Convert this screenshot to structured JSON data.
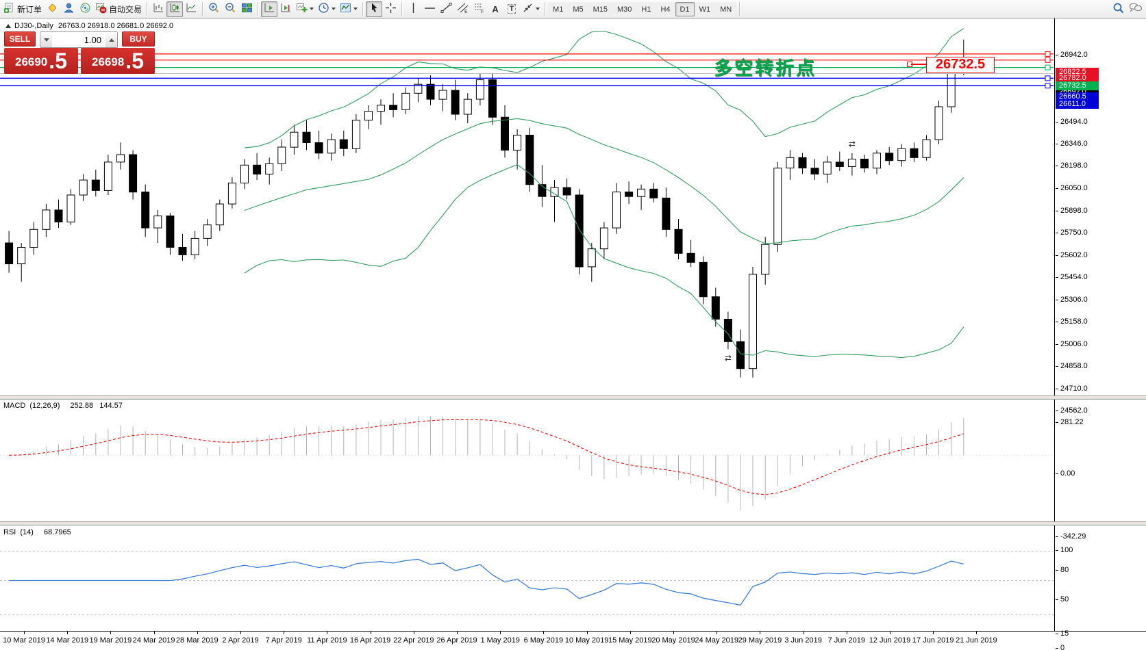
{
  "toolbar": {
    "new_order_label": "新订单",
    "autotrading_label": "自动交易",
    "timeframes": [
      "M1",
      "M5",
      "M15",
      "M30",
      "H1",
      "H4",
      "D1",
      "W1",
      "MN"
    ],
    "active_timeframe": "D1",
    "glyphs": {
      "channel": "E",
      "fibo": "F",
      "text": "A",
      "label": "T"
    }
  },
  "chart_header": {
    "symbol": "DJ30-,Daily",
    "ohlc_text": "26763.0 26918.0 26681.0 26692.0"
  },
  "trade_panel": {
    "sell_label": "SELL",
    "buy_label": "BUY",
    "volume": "1.00",
    "sell_price_figure": "26690",
    "sell_price_fraction": ".5",
    "buy_price_figure": "26698",
    "buy_price_fraction": ".5"
  },
  "annotations": {
    "turning_point_text": "多空转折点",
    "callout_price": "26732.5"
  },
  "chart_data": {
    "type": "candlestick",
    "symbol": "DJ30-",
    "timeframe": "Daily",
    "last_ohlc": {
      "open": 26763.0,
      "high": 26918.0,
      "low": 26681.0,
      "close": 26692.0
    },
    "y_axis": {
      "min": 24540,
      "max": 27060,
      "ticks": [
        26942.0,
        26494.0,
        26346.0,
        26198.0,
        26050.0,
        25898.0,
        25750.0,
        25602.0,
        25454.0,
        25306.0,
        25158.0,
        25006.0,
        24858.0,
        24710.0,
        24562.0
      ]
    },
    "x_labels": [
      "10 Mar 2019",
      "14 Mar 2019",
      "19 Mar 2019",
      "24 Mar 2019",
      "28 Mar 2019",
      "2 Apr 2019",
      "7 Apr 2019",
      "11 Apr 2019",
      "16 Apr 2019",
      "22 Apr 2019",
      "26 Apr 2019",
      "1 May 2019",
      "6 May 2019",
      "10 May 2019",
      "15 May 2019",
      "20 May 2019",
      "24 May 2019",
      "29 May 2019",
      "3 Jun 2019",
      "7 Jun 2019",
      "12 Jun 2019",
      "17 Jun 2019",
      "21 Jun 2019"
    ],
    "candles": [
      [
        25560,
        25640,
        25360,
        25420
      ],
      [
        25420,
        25560,
        25300,
        25530
      ],
      [
        25530,
        25700,
        25480,
        25650
      ],
      [
        25650,
        25820,
        25600,
        25780
      ],
      [
        25780,
        25850,
        25660,
        25700
      ],
      [
        25700,
        25920,
        25680,
        25880
      ],
      [
        25880,
        26020,
        25840,
        25980
      ],
      [
        25980,
        26050,
        25870,
        25910
      ],
      [
        25910,
        26150,
        25880,
        26100
      ],
      [
        26100,
        26230,
        26050,
        26150
      ],
      [
        26150,
        26180,
        25850,
        25900
      ],
      [
        25900,
        25950,
        25600,
        25660
      ],
      [
        25660,
        25780,
        25560,
        25740
      ],
      [
        25740,
        25760,
        25480,
        25530
      ],
      [
        25530,
        25620,
        25440,
        25480
      ],
      [
        25480,
        25640,
        25450,
        25590
      ],
      [
        25590,
        25720,
        25540,
        25680
      ],
      [
        25680,
        25850,
        25640,
        25820
      ],
      [
        25820,
        26000,
        25790,
        25960
      ],
      [
        25960,
        26120,
        25920,
        26080
      ],
      [
        26080,
        26160,
        25980,
        26020
      ],
      [
        26020,
        26130,
        25950,
        26090
      ],
      [
        26090,
        26250,
        26040,
        26200
      ],
      [
        26200,
        26350,
        26150,
        26300
      ],
      [
        26300,
        26380,
        26180,
        26230
      ],
      [
        26230,
        26310,
        26120,
        26160
      ],
      [
        26160,
        26290,
        26110,
        26250
      ],
      [
        26250,
        26310,
        26140,
        26190
      ],
      [
        26190,
        26420,
        26160,
        26380
      ],
      [
        26380,
        26480,
        26320,
        26440
      ],
      [
        26440,
        26520,
        26350,
        26480
      ],
      [
        26480,
        26560,
        26400,
        26450
      ],
      [
        26450,
        26600,
        26420,
        26560
      ],
      [
        26560,
        26660,
        26500,
        26620
      ],
      [
        26620,
        26680,
        26480,
        26520
      ],
      [
        26520,
        26620,
        26440,
        26580
      ],
      [
        26580,
        26650,
        26380,
        26420
      ],
      [
        26420,
        26560,
        26360,
        26520
      ],
      [
        26520,
        26690,
        26480,
        26650
      ],
      [
        26650,
        26695,
        26350,
        26400
      ],
      [
        26400,
        26480,
        26130,
        26180
      ],
      [
        26180,
        26320,
        26050,
        26280
      ],
      [
        26280,
        26330,
        25900,
        25950
      ],
      [
        25950,
        26080,
        25800,
        25870
      ],
      [
        25870,
        25980,
        25700,
        25930
      ],
      [
        25930,
        25990,
        25850,
        25880
      ],
      [
        25880,
        25920,
        25350,
        25400
      ],
      [
        25400,
        25560,
        25300,
        25520
      ],
      [
        25520,
        25700,
        25450,
        25660
      ],
      [
        25660,
        25960,
        25620,
        25900
      ],
      [
        25900,
        25970,
        25820,
        25870
      ],
      [
        25870,
        25950,
        25780,
        25920
      ],
      [
        25920,
        25960,
        25830,
        25860
      ],
      [
        25860,
        25930,
        25600,
        25650
      ],
      [
        25650,
        25720,
        25450,
        25490
      ],
      [
        25490,
        25580,
        25400,
        25430
      ],
      [
        25430,
        25470,
        25150,
        25200
      ],
      [
        25200,
        25260,
        25000,
        25050
      ],
      [
        25050,
        25100,
        24850,
        24900
      ],
      [
        24900,
        24980,
        24660,
        24720
      ],
      [
        24720,
        25400,
        24660,
        25350
      ],
      [
        25350,
        25600,
        25280,
        25550
      ],
      [
        25550,
        26100,
        25500,
        26060
      ],
      [
        26060,
        26180,
        25980,
        26130
      ],
      [
        26130,
        26160,
        26020,
        26060
      ],
      [
        26060,
        26120,
        25980,
        26020
      ],
      [
        26020,
        26140,
        25960,
        26100
      ],
      [
        26100,
        26170,
        26040,
        26070
      ],
      [
        26070,
        26160,
        26010,
        26120
      ],
      [
        26120,
        26150,
        26030,
        26060
      ],
      [
        26060,
        26180,
        26020,
        26160
      ],
      [
        26160,
        26200,
        26080,
        26110
      ],
      [
        26110,
        26220,
        26070,
        26190
      ],
      [
        26190,
        26230,
        26100,
        26130
      ],
      [
        26130,
        26280,
        26110,
        26250
      ],
      [
        26250,
        26510,
        26220,
        26470
      ],
      [
        26470,
        26800,
        26430,
        26770
      ],
      [
        26763,
        26918,
        26681,
        26692
      ]
    ],
    "overlays": {
      "bollinger": {
        "period": 20,
        "deviation": 2,
        "color": "#2e9e5e"
      }
    },
    "levels": [
      {
        "price": 26822.5,
        "line_color": "#ff0000",
        "width": 1.2,
        "label_bg": "#e81123",
        "label_fg": "#ffffff",
        "square": true,
        "z": 2
      },
      {
        "price": 26782.0,
        "line_color": "#ff0000",
        "width": 1.2,
        "label_bg": "#e81123",
        "label_fg": "#ffffff",
        "square": true,
        "z": 2
      },
      {
        "price": 26732.5,
        "line_color": "#00b050",
        "width": 1.3,
        "label_bg": "#00b050",
        "label_fg": "#ffffff",
        "square": true,
        "z": 5
      },
      {
        "price": 26692.0,
        "line_color": "#c0c0c0",
        "width": 1.0,
        "label_bg": "#000000",
        "label_fg": "#ffffff",
        "square": false,
        "z": 1
      },
      {
        "price": 26660.5,
        "line_color": "#0000ee",
        "width": 1.5,
        "label_bg": "#0000d8",
        "label_fg": "#ffffff",
        "square": true,
        "z": 2
      },
      {
        "price": 26611.0,
        "line_color": "#0000ee",
        "width": 1.5,
        "label_bg": "#0000d8",
        "label_fg": "#ffffff",
        "square": true,
        "z": 2
      }
    ],
    "markers": [
      {
        "index": 58,
        "price": 24790,
        "glyph": "⇄"
      },
      {
        "index": 68,
        "price": 26220,
        "glyph": "⇄"
      }
    ],
    "macd": {
      "name": "MACD",
      "params": "(12,26,9)",
      "fast": 12,
      "slow": 26,
      "signal_period": 9,
      "value": "252.88",
      "signal_value": "144.57",
      "axis_max": 281.22,
      "axis_min": -342.29,
      "axis_labels": [
        "281.22",
        "0.00",
        "-342.29"
      ],
      "hist_color": "#b4b4b4",
      "signal_color": "#ff0000"
    },
    "rsi": {
      "name": "RSI",
      "params": "(14)",
      "period": 14,
      "value": "68.7965",
      "axis_ticks": [
        100,
        80,
        50,
        15,
        0
      ],
      "level_lines": [
        80,
        50,
        15
      ],
      "line_color": "#3d7edb"
    }
  }
}
